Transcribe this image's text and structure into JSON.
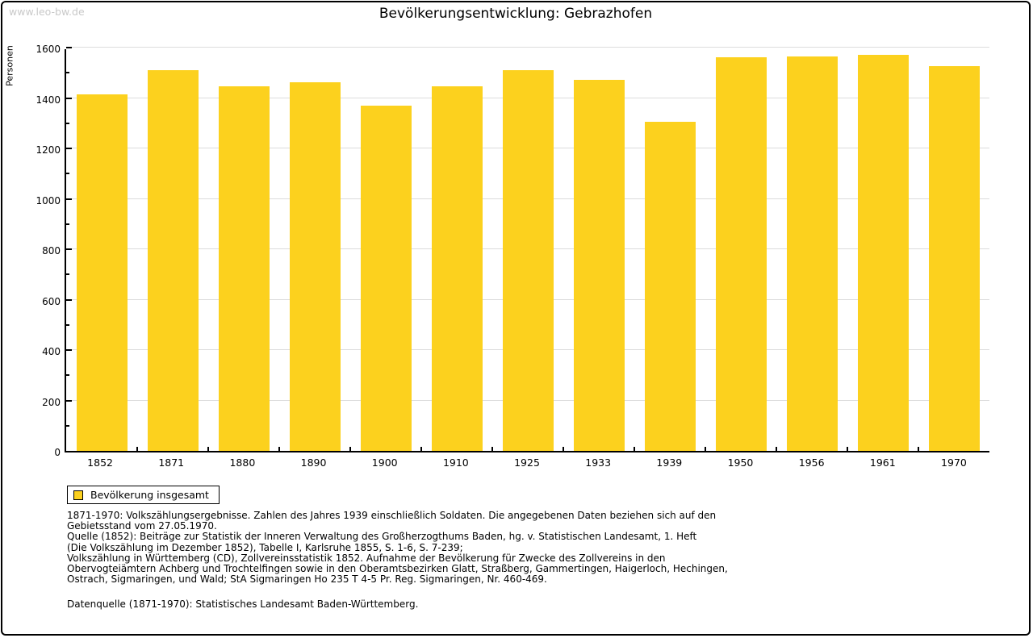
{
  "watermark": "www.leo-bw.de",
  "title": "Bevölkerungsentwicklung: Gebrazhofen",
  "y_axis": {
    "label": "Personen",
    "max": 1600,
    "major_step": 200,
    "minor_step": 100
  },
  "legend": {
    "label": "Bevölkerung insgesamt"
  },
  "colors": {
    "bar": "#FCD11E",
    "grid": "#DCDCDC",
    "axis": "#000000",
    "watermark": "#C9C9C9"
  },
  "chart_data": {
    "type": "bar",
    "title": "Bevölkerungsentwicklung: Gebrazhofen",
    "xlabel": "",
    "ylabel": "Personen",
    "ylim": [
      0,
      1600
    ],
    "yticks": [
      0,
      200,
      400,
      600,
      800,
      1000,
      1200,
      1400,
      1600
    ],
    "grid": "horizontal-major",
    "legend_position": "bottom-left",
    "categories": [
      "1852",
      "1871",
      "1880",
      "1890",
      "1900",
      "1910",
      "1925",
      "1933",
      "1939",
      "1950",
      "1956",
      "1961",
      "1970"
    ],
    "series": [
      {
        "name": "Bevölkerung insgesamt",
        "values": [
          1416,
          1510,
          1447,
          1461,
          1370,
          1445,
          1509,
          1472,
          1307,
          1561,
          1565,
          1570,
          1526
        ]
      }
    ]
  },
  "footnotes": {
    "lines": [
      "1871-1970: Volkszählungsergebnisse. Zahlen des Jahres 1939 einschließlich Soldaten. Die angegebenen Daten beziehen sich auf den",
      "Gebietsstand vom 27.05.1970.",
      "Quelle (1852): Beiträge zur Statistik der Inneren Verwaltung des Großherzogthums Baden, hg. v. Statistischen Landesamt, 1. Heft",
      "(Die Volkszählung im Dezember 1852), Tabelle I, Karlsruhe 1855, S. 1-6, S. 7-239;",
      "Volkszählung in Württemberg (CD), Zollvereinsstatistik 1852. Aufnahme der Bevölkerung für Zwecke des Zollvereins in den",
      "Obervogteiämtern Achberg und Trochtelfingen sowie in den Oberamtsbezirken Glatt, Straßberg, Gammertingen, Haigerloch, Hechingen,",
      "Ostrach, Sigmaringen, und Wald; StA Sigmaringen Ho 235 T 4-5 Pr. Reg. Sigmaringen, Nr. 460-469."
    ],
    "datasource": "Datenquelle (1871-1970): Statistisches Landesamt Baden-Württemberg."
  }
}
